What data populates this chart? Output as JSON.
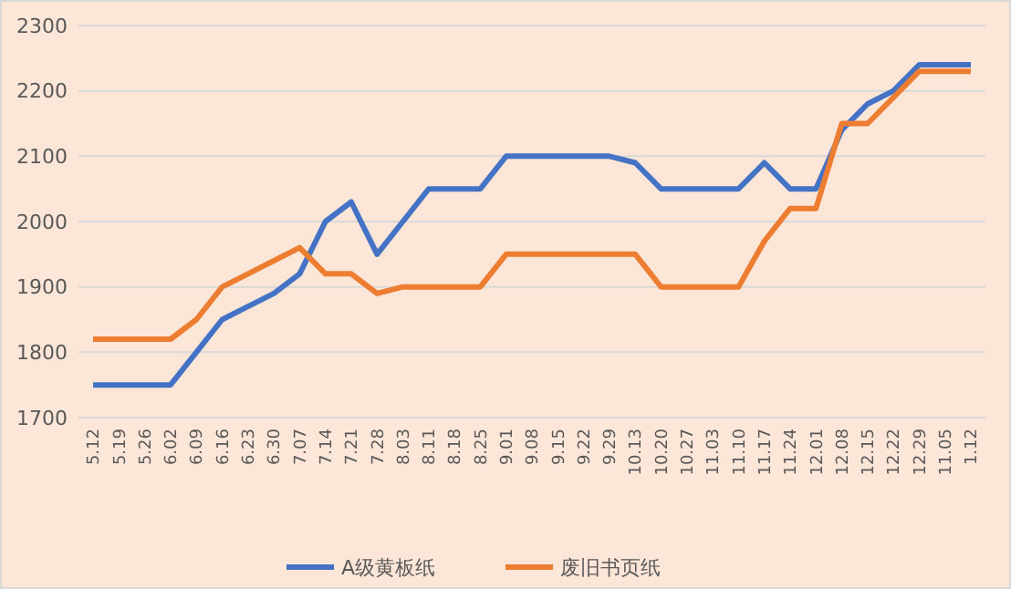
{
  "chart_data": {
    "type": "line",
    "categories": [
      "5.12",
      "5.19",
      "5.26",
      "6.02",
      "6.09",
      "6.16",
      "6.23",
      "6.30",
      "7.07",
      "7.14",
      "7.21",
      "7.28",
      "8.03",
      "8.11",
      "8.18",
      "8.25",
      "9.01",
      "9.08",
      "9.15",
      "9.22",
      "9.29",
      "10.13",
      "10.20",
      "10.27",
      "11.03",
      "11.10",
      "11.17",
      "11.24",
      "12.01",
      "12.08",
      "12.15",
      "12.22",
      "12.29",
      "11.05",
      "1.12"
    ],
    "series": [
      {
        "name": "A级黄板纸",
        "color": "#4472c4",
        "values": [
          1750,
          1750,
          1750,
          1750,
          1800,
          1850,
          1870,
          1890,
          1920,
          2000,
          2030,
          1950,
          2000,
          2050,
          2050,
          2050,
          2100,
          2100,
          2100,
          2100,
          2100,
          2090,
          2050,
          2050,
          2050,
          2050,
          2090,
          2050,
          2050,
          2140,
          2180,
          2200,
          2240,
          2240,
          2240
        ]
      },
      {
        "name": "废旧书页纸",
        "color": "#ed7d31",
        "values": [
          1820,
          1820,
          1820,
          1820,
          1850,
          1900,
          1920,
          1940,
          1960,
          1920,
          1920,
          1890,
          1900,
          1900,
          1900,
          1900,
          1950,
          1950,
          1950,
          1950,
          1950,
          1950,
          1900,
          1900,
          1900,
          1900,
          1970,
          2020,
          2020,
          2150,
          2150,
          2190,
          2230,
          2230,
          2230
        ]
      }
    ],
    "ylim": [
      1700,
      2300
    ],
    "yticks": [
      1700,
      1800,
      1900,
      2000,
      2100,
      2200,
      2300
    ],
    "grid": "y",
    "legend": "bottom",
    "marker": "none",
    "line_style": "solid"
  }
}
